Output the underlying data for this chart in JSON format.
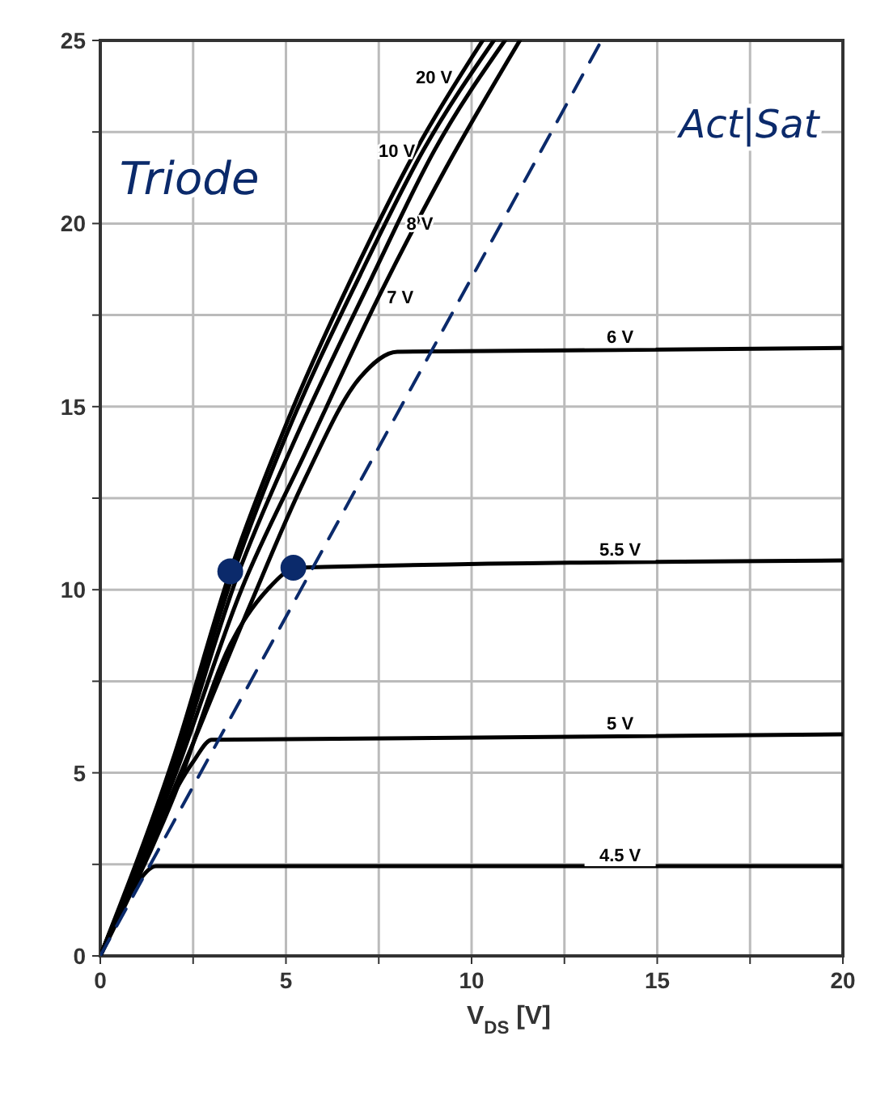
{
  "chart_data": {
    "type": "line",
    "xlabel": "V$_{DS}$ [V]",
    "xlim": [
      0,
      20
    ],
    "xticks": [
      0,
      {
        "value": 2.5,
        "label": null
      },
      5,
      {
        "value": 7.5,
        "label": null
      },
      10,
      {
        "value": 12.5,
        "label": null
      },
      15,
      {
        "value": 17.5,
        "label": null
      },
      20
    ],
    "ylim": [
      0,
      25
    ],
    "yticks": [
      0,
      {
        "value": 2.5,
        "label": null
      },
      5,
      {
        "value": 7.5,
        "label": null
      },
      10,
      {
        "value": 12.5,
        "label": null
      },
      15,
      {
        "value": 17.5,
        "label": null
      },
      20,
      {
        "value": 22.5,
        "label": null
      },
      25
    ],
    "grid": true,
    "legend": false,
    "marker": "none",
    "series": [
      {
        "name": "20 V",
        "color": "#000000",
        "x": [
          0,
          2,
          3.5,
          5,
          7,
          8.5,
          10.3
        ],
        "values": [
          0,
          5.5,
          10.5,
          14.5,
          19,
          22,
          25
        ]
      },
      {
        "name": "10 V",
        "color": "#000000",
        "x": [
          0,
          2,
          3.6,
          5,
          7,
          8.7,
          10.6
        ],
        "values": [
          0,
          5.3,
          10.5,
          14.2,
          18.6,
          22,
          25
        ]
      },
      {
        "name": "8 V",
        "color": "#000000",
        "x": [
          0,
          2,
          3.7,
          5.2,
          7.3,
          9,
          10.9
        ],
        "values": [
          0,
          5.1,
          10.4,
          14,
          18.5,
          22,
          25
        ]
      },
      {
        "name": "7 V",
        "color": "#000000",
        "x": [
          0,
          2,
          3.8,
          5.5,
          7.5,
          9.3,
          11.3
        ],
        "values": [
          0,
          4.9,
          10,
          13.7,
          18,
          21.5,
          25
        ]
      },
      {
        "name": "6 V",
        "color": "#000000",
        "x": [
          0,
          2,
          4,
          5.5,
          7,
          8,
          20
        ],
        "values": [
          0,
          4.6,
          9.5,
          13,
          15.8,
          16.5,
          16.6
        ]
      },
      {
        "name": "5.5 V",
        "color": "#000000",
        "x": [
          0,
          2,
          3.5,
          4.5,
          5.3,
          20
        ],
        "values": [
          0,
          4.4,
          8.5,
          10,
          10.6,
          10.8
        ]
      },
      {
        "name": "5 V",
        "color": "#000000",
        "x": [
          0,
          1.5,
          2.5,
          3,
          20
        ],
        "values": [
          0,
          3.5,
          5.3,
          5.9,
          6.05
        ]
      },
      {
        "name": "4.5 V",
        "color": "#000000",
        "x": [
          0,
          1,
          1.5,
          20
        ],
        "values": [
          0,
          2,
          2.45,
          2.45
        ]
      },
      {
        "color": "#0b2a6b",
        "line_style": "dashed",
        "x": [
          0,
          13.5
        ],
        "values": [
          0,
          25
        ]
      },
      {
        "type": "scatter",
        "marker": "circle",
        "color": "#0b2a6b",
        "x": [
          3.5,
          5.2
        ],
        "values": [
          10.5,
          10.6
        ]
      }
    ],
    "annotations": [
      "Triode",
      "Act|Sat"
    ]
  }
}
